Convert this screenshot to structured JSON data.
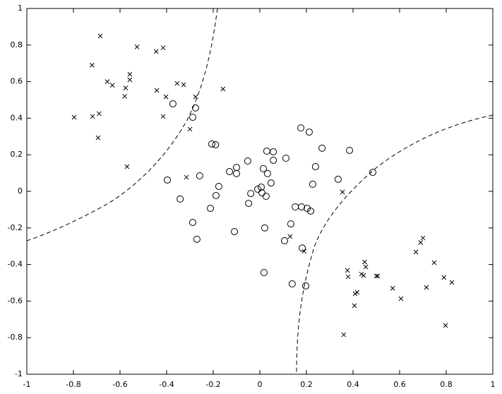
{
  "chart_data": {
    "type": "scatter",
    "xlim": [
      -1,
      1
    ],
    "ylim": [
      -1,
      1
    ],
    "xticks": [
      -1,
      -0.8,
      -0.6,
      -0.4,
      -0.2,
      0,
      0.2,
      0.4,
      0.6,
      0.8,
      1
    ],
    "yticks": [
      -1,
      -0.8,
      -0.6,
      -0.4,
      -0.2,
      0,
      0.2,
      0.4,
      0.6,
      0.8,
      1
    ],
    "series": [
      {
        "marker": "x",
        "color": "#000000",
        "x": [
          -0.685,
          -0.527,
          -0.72,
          -0.445,
          -0.415,
          -0.558,
          -0.558,
          -0.655,
          -0.633,
          -0.576,
          -0.58,
          -0.442,
          -0.403,
          -0.355,
          -0.327,
          -0.276,
          -0.158,
          -0.797,
          -0.718,
          -0.69,
          -0.694,
          -0.415,
          -0.3,
          -0.57,
          -0.315,
          0.355,
          0.13,
          0.19,
          0.376,
          0.379,
          0.45,
          0.455,
          0.436,
          0.445,
          0.418,
          0.409,
          0.406,
          0.5,
          0.506,
          0.57,
          0.606,
          0.67,
          0.748,
          0.7,
          0.69,
          0.715,
          0.79,
          0.824,
          0.797,
          0.36
        ],
        "values": [
          0.85,
          0.79,
          0.69,
          0.765,
          0.785,
          0.64,
          0.61,
          0.6,
          0.58,
          0.565,
          0.52,
          0.552,
          0.517,
          0.59,
          0.583,
          0.517,
          0.56,
          0.405,
          0.41,
          0.425,
          0.293,
          0.41,
          0.34,
          0.135,
          0.077,
          -0.004,
          -0.247,
          -0.328,
          -0.432,
          -0.467,
          -0.386,
          -0.413,
          -0.452,
          -0.46,
          -0.552,
          -0.56,
          -0.625,
          -0.463,
          -0.463,
          -0.53,
          -0.587,
          -0.332,
          -0.39,
          -0.255,
          -0.28,
          -0.525,
          -0.471,
          -0.498,
          -0.733,
          -0.784
        ]
      },
      {
        "marker": "o",
        "color": "#000000",
        "x": [
          -0.373,
          -0.276,
          -0.288,
          -0.206,
          -0.19,
          -0.397,
          -0.342,
          -0.258,
          -0.13,
          -0.1,
          -0.1,
          -0.052,
          -0.176,
          -0.188,
          -0.212,
          -0.288,
          -0.27,
          -0.109,
          -0.039,
          -0.048,
          -0.009,
          0.006,
          0.009,
          0.015,
          0.03,
          0.033,
          0.027,
          0.058,
          0.058,
          0.048,
          0.021,
          0.018,
          0.112,
          0.106,
          0.176,
          0.212,
          0.267,
          0.239,
          0.227,
          0.152,
          0.179,
          0.203,
          0.218,
          0.133,
          0.139,
          0.182,
          0.197,
          0.336,
          0.385,
          0.485
        ],
        "values": [
          0.479,
          0.456,
          0.405,
          0.259,
          0.255,
          0.062,
          -0.042,
          0.085,
          0.108,
          0.131,
          0.097,
          0.166,
          0.027,
          -0.023,
          -0.093,
          -0.17,
          -0.262,
          -0.22,
          -0.012,
          -0.066,
          0.012,
          0.023,
          -0.008,
          0.124,
          0.22,
          0.097,
          -0.027,
          0.216,
          0.17,
          0.046,
          -0.2,
          -0.444,
          0.181,
          -0.27,
          0.347,
          0.324,
          0.236,
          0.135,
          0.039,
          -0.085,
          -0.085,
          -0.093,
          -0.108,
          -0.178,
          -0.506,
          -0.31,
          -0.517,
          0.066,
          0.224,
          0.104
        ]
      }
    ]
  }
}
